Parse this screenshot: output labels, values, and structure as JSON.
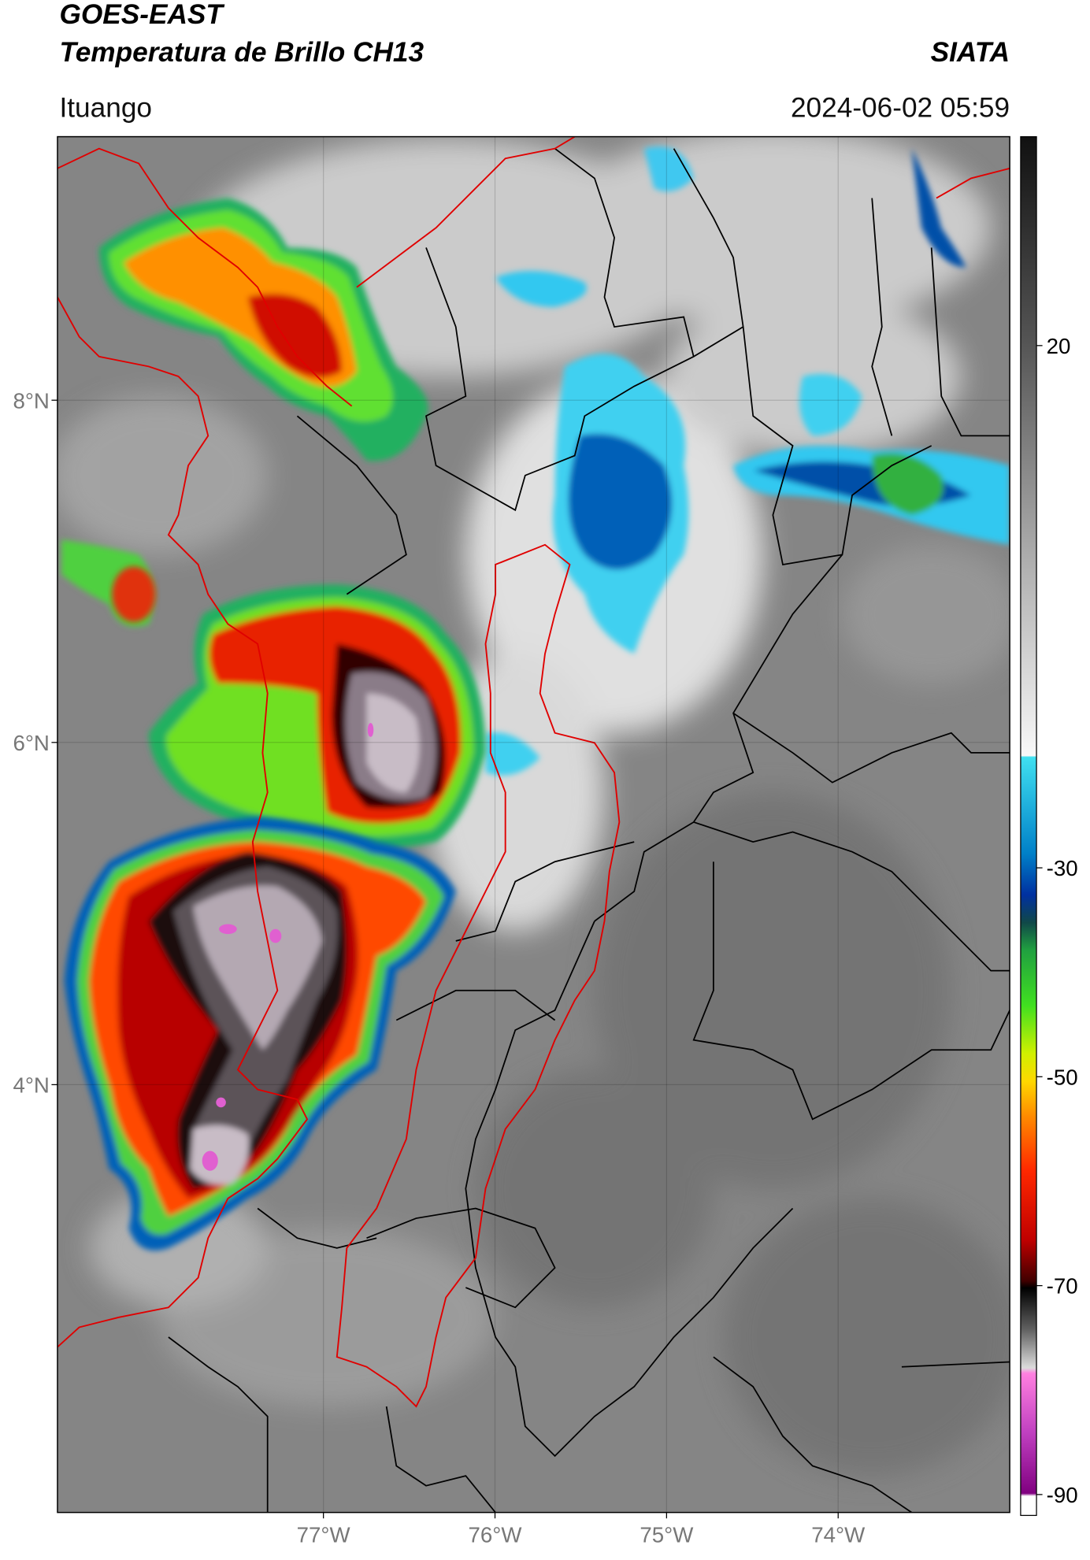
{
  "header": {
    "title_line1": "GOES-EAST",
    "title_line2": "Temperatura de Brillo CH13",
    "organization": "SIATA",
    "location": "Ituango",
    "datetime": "2024-06-02 05:59"
  },
  "map": {
    "xlim": [
      -78.55,
      -73.0
    ],
    "ylim": [
      1.5,
      9.54
    ],
    "xticks": [
      {
        "value": -77,
        "label": "77°W"
      },
      {
        "value": -76,
        "label": "76°W"
      },
      {
        "value": -75,
        "label": "75°W"
      },
      {
        "value": -74,
        "label": "74°W"
      }
    ],
    "yticks": [
      {
        "value": 8,
        "label": "8°N"
      },
      {
        "value": 6,
        "label": "6°N"
      },
      {
        "value": 4,
        "label": "4°N"
      }
    ],
    "grid": true
  },
  "colorbar": {
    "range": [
      -92,
      40
    ],
    "ticks": [
      20,
      -30,
      -50,
      -70,
      -90
    ]
  }
}
